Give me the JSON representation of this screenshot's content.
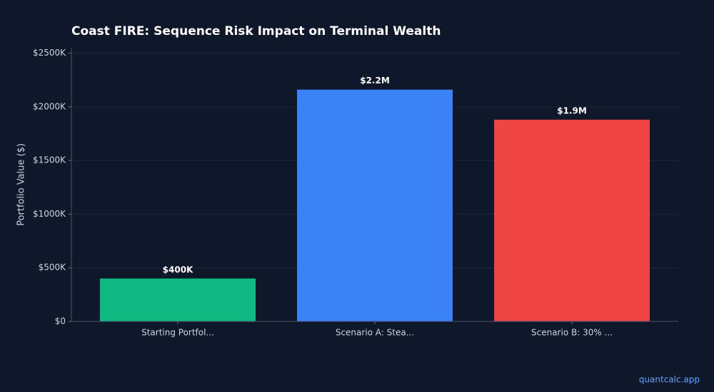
{
  "chart_data": {
    "type": "bar",
    "title": "Coast FIRE: Sequence Risk Impact on Terminal Wealth",
    "y_label": "Portfolio Value ($)",
    "categories": [
      "Starting Portfol...",
      "Scenario A: Stea...",
      "Scenario B: 30% ..."
    ],
    "values": [
      400000,
      2160000,
      1880000
    ],
    "value_labels": [
      "$400K",
      "$2.2M",
      "$1.9M"
    ],
    "colors": [
      "#10b981",
      "#3b82f6",
      "#ef4444"
    ],
    "ylim": [
      0,
      2550000
    ],
    "yticks": [
      {
        "value": 0,
        "label": "$0"
      },
      {
        "value": 500000,
        "label": "$500K"
      },
      {
        "value": 1000000,
        "label": "$1000K"
      },
      {
        "value": 1500000,
        "label": "$1500K"
      },
      {
        "value": 2000000,
        "label": "$2000K"
      },
      {
        "value": 2500000,
        "label": "$2500K"
      }
    ],
    "grid": true,
    "watermark": "quantcalc.app"
  }
}
